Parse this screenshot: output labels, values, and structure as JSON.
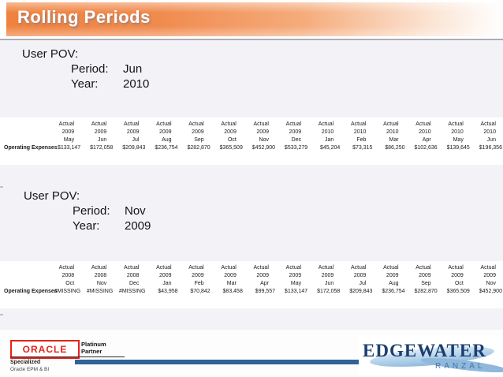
{
  "slide": {
    "title": "Rolling Periods"
  },
  "pov_blocks": [
    {
      "title": "User POV:",
      "period_label": "Period:",
      "period_value": "Jun",
      "year_label": "Year:",
      "year_value": "2010"
    },
    {
      "title": "User POV:",
      "period_label": "Period:",
      "period_value": "Nov",
      "year_label": "Year:",
      "year_value": "2009"
    }
  ],
  "tables": [
    {
      "row_label": "Operating Expenses",
      "columns": [
        {
          "scenario": "Actual",
          "year": "2009",
          "month": "May",
          "value": "$133,147"
        },
        {
          "scenario": "Actual",
          "year": "2009",
          "month": "Jun",
          "value": "$172,058"
        },
        {
          "scenario": "Actual",
          "year": "2009",
          "month": "Jul",
          "value": "$209,843"
        },
        {
          "scenario": "Actual",
          "year": "2009",
          "month": "Aug",
          "value": "$236,754"
        },
        {
          "scenario": "Actual",
          "year": "2009",
          "month": "Sep",
          "value": "$282,870"
        },
        {
          "scenario": "Actual",
          "year": "2009",
          "month": "Oct",
          "value": "$365,509"
        },
        {
          "scenario": "Actual",
          "year": "2009",
          "month": "Nov",
          "value": "$452,900"
        },
        {
          "scenario": "Actual",
          "year": "2009",
          "month": "Dec",
          "value": "$533,279"
        },
        {
          "scenario": "Actual",
          "year": "2010",
          "month": "Jan",
          "value": "$45,204"
        },
        {
          "scenario": "Actual",
          "year": "2010",
          "month": "Feb",
          "value": "$73,315"
        },
        {
          "scenario": "Actual",
          "year": "2010",
          "month": "Mar",
          "value": "$86,250"
        },
        {
          "scenario": "Actual",
          "year": "2010",
          "month": "Apr",
          "value": "$102,636"
        },
        {
          "scenario": "Actual",
          "year": "2010",
          "month": "May",
          "value": "$139,645"
        },
        {
          "scenario": "Actual",
          "year": "2010",
          "month": "Jun",
          "value": "$196,356"
        }
      ]
    },
    {
      "row_label": "Operating Expenses",
      "columns": [
        {
          "scenario": "Actual",
          "year": "2008",
          "month": "Oct",
          "value": "#MISSING"
        },
        {
          "scenario": "Actual",
          "year": "2008",
          "month": "Nov",
          "value": "#MISSING"
        },
        {
          "scenario": "Actual",
          "year": "2008",
          "month": "Dec",
          "value": "#MISSING"
        },
        {
          "scenario": "Actual",
          "year": "2009",
          "month": "Jan",
          "value": "$43,958"
        },
        {
          "scenario": "Actual",
          "year": "2009",
          "month": "Feb",
          "value": "$70,842"
        },
        {
          "scenario": "Actual",
          "year": "2009",
          "month": "Mar",
          "value": "$83,458"
        },
        {
          "scenario": "Actual",
          "year": "2009",
          "month": "Apr",
          "value": "$99,557"
        },
        {
          "scenario": "Actual",
          "year": "2009",
          "month": "May",
          "value": "$133,147"
        },
        {
          "scenario": "Actual",
          "year": "2009",
          "month": "Jun",
          "value": "$172,058"
        },
        {
          "scenario": "Actual",
          "year": "2009",
          "month": "Jul",
          "value": "$209,843"
        },
        {
          "scenario": "Actual",
          "year": "2009",
          "month": "Aug",
          "value": "$236,754"
        },
        {
          "scenario": "Actual",
          "year": "2009",
          "month": "Sep",
          "value": "$282,870"
        },
        {
          "scenario": "Actual",
          "year": "2009",
          "month": "Oct",
          "value": "$365,509"
        },
        {
          "scenario": "Actual",
          "year": "2009",
          "month": "Nov",
          "value": "$452,900"
        }
      ]
    }
  ],
  "footer": {
    "oracle_badge": {
      "brand": "ORACLE",
      "tier_line1": "Platinum",
      "tier_line2": "Partner",
      "specialized_label": "Specialized",
      "specialty_label": "Oracle EPM & BI"
    },
    "edgewater": {
      "brand": "EDGEWATER",
      "sub_brand": "RANZAL"
    }
  },
  "colors": {
    "banner_orange": "#F0823F",
    "divider_gray": "#9A9AA4",
    "footer_bar_blue": "#2F6496",
    "oracle_red": "#E2231A",
    "edgewater_navy": "#1C3E70",
    "edgewater_swoosh_blue": "#8FB8DC"
  }
}
